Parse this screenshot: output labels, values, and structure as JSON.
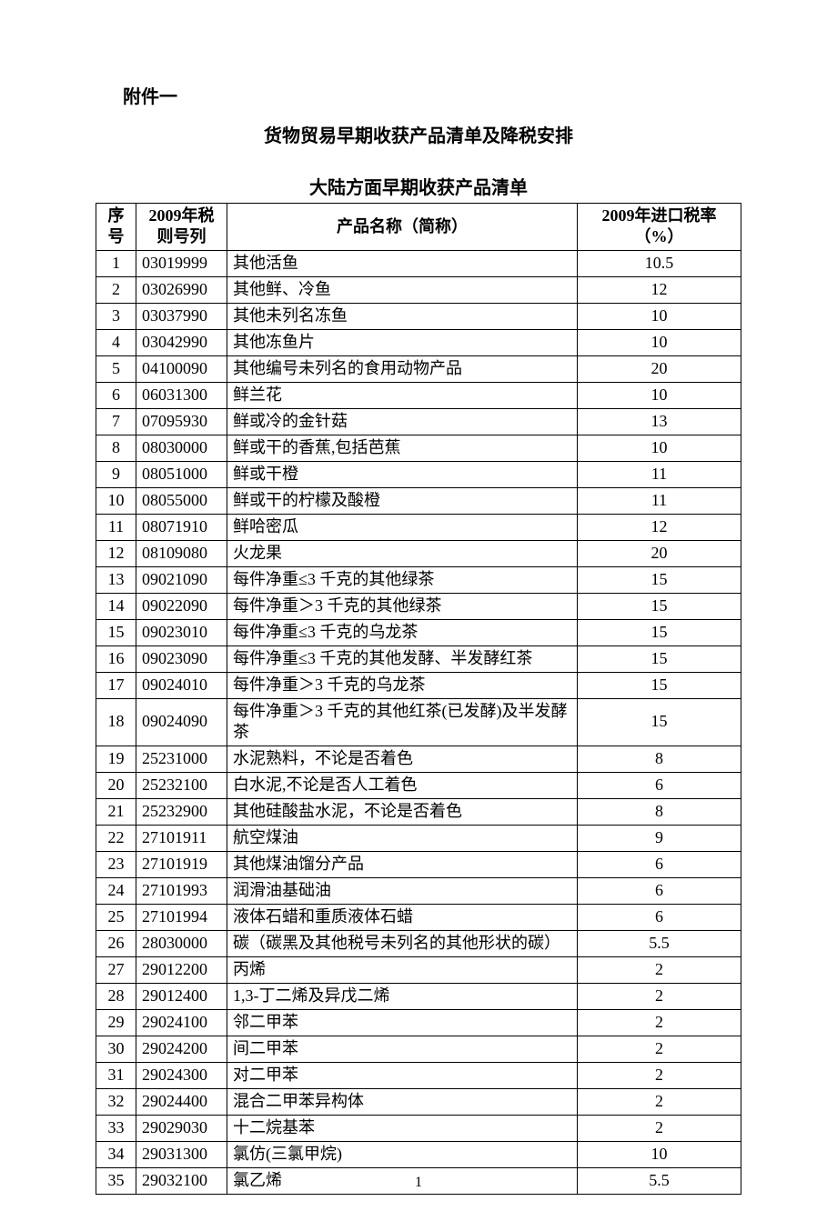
{
  "attachment_label": "附件一",
  "title_main": "货物贸易早期收获产品清单及降税安排",
  "title_sub": "大陆方面早期收获产品清单",
  "columns": {
    "seq": "序号",
    "code": "2009年税则号列",
    "name": "产品名称（简称）",
    "rate": "2009年进口税率（%）"
  },
  "page_number": "1",
  "colors": {
    "text": "#000000",
    "background": "#ffffff",
    "border": "#000000"
  },
  "font_sizes": {
    "heading": 20,
    "cell": 18,
    "page_number": 16
  },
  "rows": [
    {
      "seq": "1",
      "code": "03019999",
      "name": "其他活鱼",
      "rate": "10.5"
    },
    {
      "seq": "2",
      "code": "03026990",
      "name": "其他鲜、冷鱼",
      "rate": "12"
    },
    {
      "seq": "3",
      "code": "03037990",
      "name": "其他未列名冻鱼",
      "rate": "10"
    },
    {
      "seq": "4",
      "code": "03042990",
      "name": "其他冻鱼片",
      "rate": "10"
    },
    {
      "seq": "5",
      "code": "04100090",
      "name": "其他编号未列名的食用动物产品",
      "rate": "20"
    },
    {
      "seq": "6",
      "code": "06031300",
      "name": "鲜兰花",
      "rate": "10"
    },
    {
      "seq": "7",
      "code": "07095930",
      "name": "鲜或冷的金针菇",
      "rate": "13"
    },
    {
      "seq": "8",
      "code": "08030000",
      "name": "鲜或干的香蕉,包括芭蕉",
      "rate": "10"
    },
    {
      "seq": "9",
      "code": "08051000",
      "name": "鲜或干橙",
      "rate": "11"
    },
    {
      "seq": "10",
      "code": "08055000",
      "name": "鲜或干的柠檬及酸橙",
      "rate": "11"
    },
    {
      "seq": "11",
      "code": "08071910",
      "name": "鲜哈密瓜",
      "rate": "12"
    },
    {
      "seq": "12",
      "code": "08109080",
      "name": "火龙果",
      "rate": "20"
    },
    {
      "seq": "13",
      "code": "09021090",
      "name": "每件净重≤3 千克的其他绿茶",
      "rate": "15"
    },
    {
      "seq": "14",
      "code": "09022090",
      "name": "每件净重＞3 千克的其他绿茶",
      "rate": "15"
    },
    {
      "seq": "15",
      "code": "09023010",
      "name": "每件净重≤3 千克的乌龙茶",
      "rate": "15"
    },
    {
      "seq": "16",
      "code": "09023090",
      "name": "每件净重≤3 千克的其他发酵、半发酵红茶",
      "rate": "15"
    },
    {
      "seq": "17",
      "code": "09024010",
      "name": "每件净重＞3 千克的乌龙茶",
      "rate": "15"
    },
    {
      "seq": "18",
      "code": "09024090",
      "name": "每件净重＞3 千克的其他红茶(已发酵)及半发酵茶",
      "rate": "15"
    },
    {
      "seq": "19",
      "code": "25231000",
      "name": "水泥熟料，不论是否着色",
      "rate": "8"
    },
    {
      "seq": "20",
      "code": "25232100",
      "name": "白水泥,不论是否人工着色",
      "rate": "6"
    },
    {
      "seq": "21",
      "code": "25232900",
      "name": "其他硅酸盐水泥，不论是否着色",
      "rate": "8"
    },
    {
      "seq": "22",
      "code": "27101911",
      "name": "航空煤油",
      "rate": "9"
    },
    {
      "seq": "23",
      "code": "27101919",
      "name": "其他煤油馏分产品",
      "rate": "6"
    },
    {
      "seq": "24",
      "code": "27101993",
      "name": "润滑油基础油",
      "rate": "6"
    },
    {
      "seq": "25",
      "code": "27101994",
      "name": "液体石蜡和重质液体石蜡",
      "rate": "6"
    },
    {
      "seq": "26",
      "code": "28030000",
      "name": "碳（碳黑及其他税号未列名的其他形状的碳）",
      "rate": "5.5"
    },
    {
      "seq": "27",
      "code": "29012200",
      "name": "丙烯",
      "rate": "2"
    },
    {
      "seq": "28",
      "code": "29012400",
      "name": "1,3-丁二烯及异戊二烯",
      "rate": "2"
    },
    {
      "seq": "29",
      "code": "29024100",
      "name": "邻二甲苯",
      "rate": "2"
    },
    {
      "seq": "30",
      "code": "29024200",
      "name": "间二甲苯",
      "rate": "2"
    },
    {
      "seq": "31",
      "code": "29024300",
      "name": "对二甲苯",
      "rate": "2"
    },
    {
      "seq": "32",
      "code": "29024400",
      "name": "混合二甲苯异构体",
      "rate": "2"
    },
    {
      "seq": "33",
      "code": "29029030",
      "name": "十二烷基苯",
      "rate": "2"
    },
    {
      "seq": "34",
      "code": "29031300",
      "name": "氯仿(三氯甲烷)",
      "rate": "10"
    },
    {
      "seq": "35",
      "code": "29032100",
      "name": "氯乙烯",
      "rate": "5.5"
    }
  ]
}
